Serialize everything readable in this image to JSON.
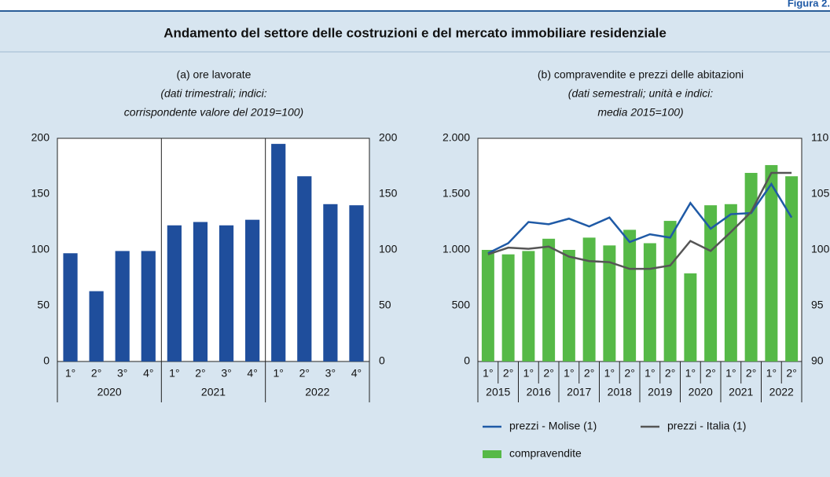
{
  "figure_label": "Figura 2.",
  "title": "Andamento del settore delle costruzioni e del mercato immobiliare residenziale",
  "chart_data": [
    {
      "type": "bar",
      "title": "(a) ore lavorate",
      "subtitle": [
        "(dati trimestrali; indici:",
        "corrispondente valore del 2019=100)"
      ],
      "categories": [
        "1°",
        "2°",
        "3°",
        "4°",
        "1°",
        "2°",
        "3°",
        "4°",
        "1°",
        "2°",
        "3°",
        "4°"
      ],
      "groups": [
        "2020",
        "2021",
        "2022"
      ],
      "values": [
        97,
        63,
        99,
        99,
        122,
        125,
        122,
        127,
        195,
        166,
        141,
        140
      ],
      "color": "#1f4e9c",
      "ylim": [
        0,
        200
      ],
      "yticks": [
        0,
        50,
        100,
        150,
        200
      ],
      "y2lim": [
        0,
        200
      ],
      "y2ticks": [
        0,
        50,
        100,
        150,
        200
      ]
    },
    {
      "type": "bar",
      "title": "(b) compravendite e prezzi delle abitazioni",
      "subtitle": [
        "(dati semestrali; unità e indici:",
        "media 2015=100)"
      ],
      "categories": [
        "1°",
        "2°",
        "1°",
        "2°",
        "1°",
        "2°",
        "1°",
        "2°",
        "1°",
        "2°",
        "1°",
        "2°",
        "1°",
        "2°",
        "1°",
        "2°"
      ],
      "groups": [
        "2015",
        "2016",
        "2017",
        "2018",
        "2019",
        "2020",
        "2021",
        "2022"
      ],
      "series": [
        {
          "name": "compravendite",
          "type": "bar",
          "color": "#56b947",
          "values": [
            1000,
            960,
            990,
            1100,
            1000,
            1110,
            1040,
            1180,
            1060,
            1260,
            790,
            1400,
            1410,
            1690,
            1760,
            1660
          ]
        },
        {
          "name": "prezzi - Molise (1)",
          "type": "line",
          "axis": "y2",
          "color": "#1f5aa6",
          "values": [
            99.7,
            100.6,
            102.5,
            102.3,
            102.8,
            102.1,
            102.9,
            100.7,
            101.4,
            101.1,
            104.2,
            101.9,
            103.2,
            103.3,
            105.9,
            102.9
          ]
        },
        {
          "name": "prezzi - Italia (1)",
          "type": "line",
          "axis": "y2",
          "color": "#555555",
          "values": [
            99.6,
            100.2,
            100.1,
            100.3,
            99.4,
            99.0,
            98.9,
            98.3,
            98.3,
            98.6,
            100.8,
            99.9,
            101.6,
            103.4,
            106.9,
            106.9
          ]
        }
      ],
      "ylim": [
        0,
        2000
      ],
      "yticks": [
        0,
        500,
        {
          "value": 1000,
          "label": "1.000"
        },
        {
          "value": 1500,
          "label": "1.500"
        },
        {
          "value": 2000,
          "label": "2.000"
        }
      ],
      "y2lim": [
        90,
        110
      ],
      "y2ticks": [
        90,
        95,
        100,
        105,
        110
      ]
    }
  ]
}
